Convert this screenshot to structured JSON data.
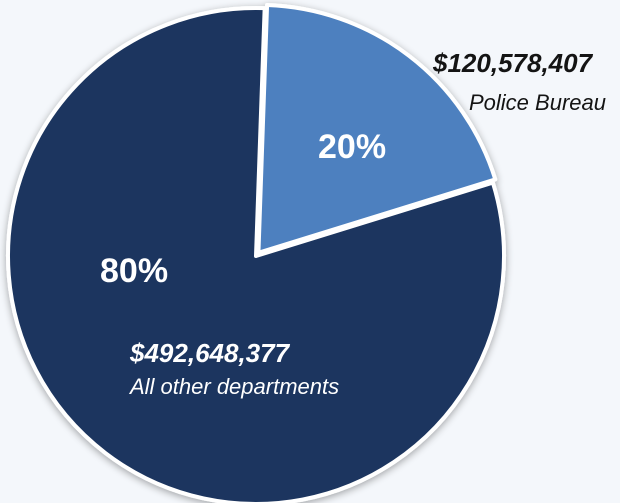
{
  "chart_data": {
    "type": "pie",
    "start_angle_deg": 2,
    "slices": [
      {
        "amount": 120578407,
        "amount_label": "$120,578,407",
        "label": "Police Bureau",
        "percent_label": "20%",
        "color": "#4d80bf"
      },
      {
        "amount": 492648377,
        "amount_label": "$492,648,377",
        "label": "All other departments",
        "percent_label": "80%",
        "color": "#1a345e"
      }
    ]
  }
}
